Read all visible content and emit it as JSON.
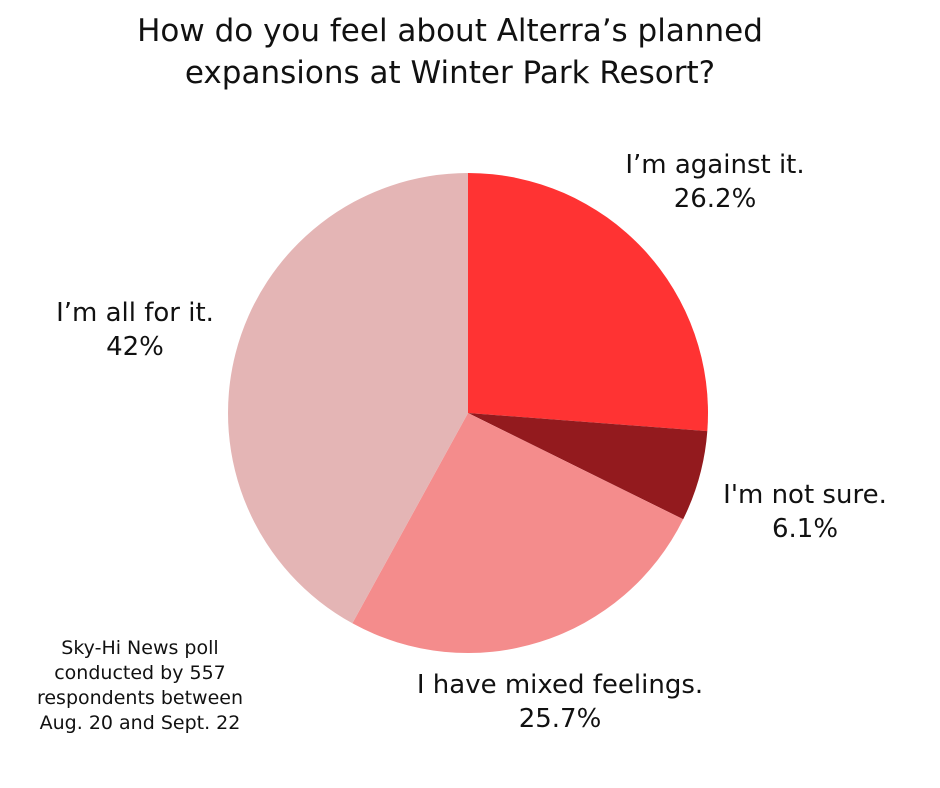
{
  "chart_data": {
    "type": "pie",
    "title": "How do you feel about Alterra’s planned\nexpansions at Winter Park Resort?",
    "slices": [
      {
        "name": "I’m against it.",
        "value": 26.2,
        "label": "26.2%",
        "color": "#ff3333"
      },
      {
        "name": "I'm not sure.",
        "value": 6.1,
        "label": "6.1%",
        "color": "#931a1e"
      },
      {
        "name": "I have mixed feelings.",
        "value": 25.7,
        "label": "25.7%",
        "color": "#f48c8c"
      },
      {
        "name": "I’m all for it.",
        "value": 42,
        "label": "42%",
        "color": "#e4b5b5"
      }
    ],
    "start_angle": "12 o'clock",
    "direction": "clockwise",
    "legend": "none",
    "annotation": "Sky-Hi News poll\nconducted by 557\nrespondents between\nAug. 20 and Sept. 22"
  }
}
